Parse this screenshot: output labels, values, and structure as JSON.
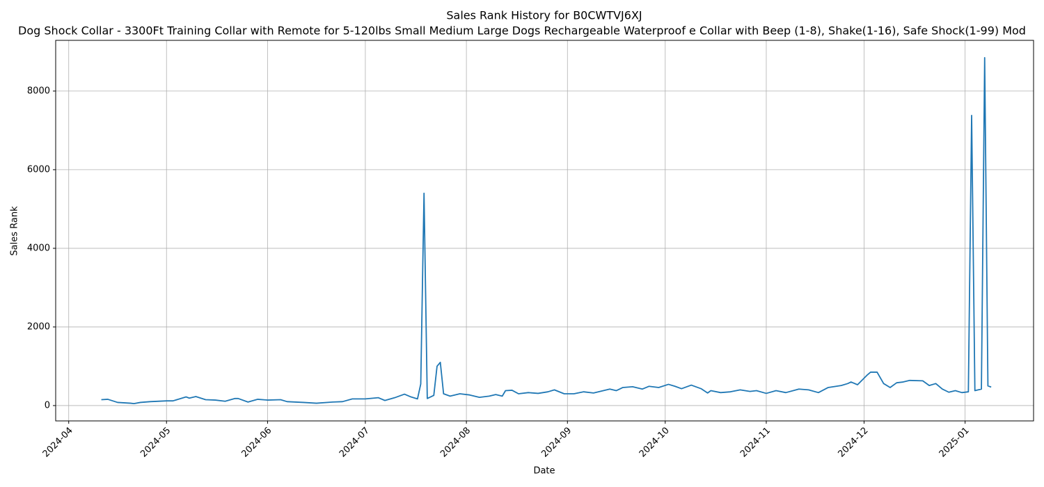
{
  "chart_data": {
    "type": "line",
    "title": "Sales Rank History for B0CWTVJ6XJ",
    "subtitle": "Dog Shock Collar - 3300Ft Training Collar with Remote for 5-120lbs Small Medium Large Dogs Rechargeable Waterproof e Collar with Beep (1-8), Shake(1-16), Safe Shock(1-99) Mod",
    "x_label": "Date",
    "y_label": "Sales Rank",
    "x": [
      "2024-04-11",
      "2024-04-13",
      "2024-04-16",
      "2024-04-20",
      "2024-04-21",
      "2024-04-23",
      "2024-04-26",
      "2024-05-01",
      "2024-05-03",
      "2024-05-07",
      "2024-05-08",
      "2024-05-10",
      "2024-05-13",
      "2024-05-16",
      "2024-05-19",
      "2024-05-22",
      "2024-05-23",
      "2024-05-26",
      "2024-05-29",
      "2024-06-01",
      "2024-06-05",
      "2024-06-07",
      "2024-06-12",
      "2024-06-16",
      "2024-06-21",
      "2024-06-24",
      "2024-06-27",
      "2024-07-01",
      "2024-07-05",
      "2024-07-07",
      "2024-07-10",
      "2024-07-13",
      "2024-07-15",
      "2024-07-17",
      "2024-07-18",
      "2024-07-19",
      "2024-07-20",
      "2024-07-22",
      "2024-07-23",
      "2024-07-24",
      "2024-07-25",
      "2024-07-27",
      "2024-07-30",
      "2024-08-02",
      "2024-08-05",
      "2024-08-08",
      "2024-08-10",
      "2024-08-12",
      "2024-08-13",
      "2024-08-15",
      "2024-08-17",
      "2024-08-20",
      "2024-08-23",
      "2024-08-26",
      "2024-08-28",
      "2024-08-31",
      "2024-09-03",
      "2024-09-06",
      "2024-09-09",
      "2024-09-12",
      "2024-09-14",
      "2024-09-16",
      "2024-09-18",
      "2024-09-21",
      "2024-09-24",
      "2024-09-26",
      "2024-09-29",
      "2024-10-02",
      "2024-10-04",
      "2024-10-06",
      "2024-10-09",
      "2024-10-12",
      "2024-10-14",
      "2024-10-15",
      "2024-10-18",
      "2024-10-21",
      "2024-10-24",
      "2024-10-27",
      "2024-10-29",
      "2024-11-01",
      "2024-11-04",
      "2024-11-07",
      "2024-11-11",
      "2024-11-14",
      "2024-11-17",
      "2024-11-20",
      "2024-11-24",
      "2024-11-26",
      "2024-11-27",
      "2024-11-29",
      "2024-12-02",
      "2024-12-03",
      "2024-12-05",
      "2024-12-07",
      "2024-12-09",
      "2024-12-11",
      "2024-12-13",
      "2024-12-15",
      "2024-12-19",
      "2024-12-21",
      "2024-12-23",
      "2024-12-25",
      "2024-12-27",
      "2024-12-29",
      "2024-12-31",
      "2025-01-02",
      "2025-01-03",
      "2025-01-04",
      "2025-01-06",
      "2025-01-07",
      "2025-01-08",
      "2025-01-09"
    ],
    "series": [
      {
        "name": "Sales Rank",
        "color": "#1f77b4",
        "values": [
          150,
          160,
          80,
          60,
          50,
          80,
          100,
          120,
          120,
          220,
          190,
          230,
          150,
          140,
          110,
          180,
          180,
          90,
          160,
          140,
          150,
          100,
          80,
          60,
          90,
          100,
          170,
          170,
          200,
          130,
          200,
          290,
          220,
          170,
          550,
          5400,
          180,
          260,
          1000,
          1100,
          300,
          240,
          300,
          270,
          210,
          240,
          280,
          240,
          380,
          390,
          300,
          330,
          310,
          350,
          400,
          300,
          300,
          350,
          320,
          380,
          420,
          380,
          460,
          480,
          420,
          490,
          460,
          540,
          490,
          430,
          520,
          430,
          320,
          380,
          330,
          350,
          400,
          360,
          380,
          310,
          380,
          330,
          420,
          400,
          330,
          460,
          510,
          560,
          600,
          530,
          780,
          850,
          850,
          560,
          460,
          580,
          600,
          640,
          630,
          510,
          560,
          420,
          340,
          380,
          330,
          350,
          7380,
          380,
          420,
          8850,
          500,
          470
        ]
      }
    ],
    "xlim": [
      "2024-03-28",
      "2025-01-22"
    ],
    "xticks": [
      {
        "value": "2024-04-01",
        "label": "2024-04"
      },
      {
        "value": "2024-05-01",
        "label": "2024-05"
      },
      {
        "value": "2024-06-01",
        "label": "2024-06"
      },
      {
        "value": "2024-07-01",
        "label": "2024-07"
      },
      {
        "value": "2024-08-01",
        "label": "2024-08"
      },
      {
        "value": "2024-09-01",
        "label": "2024-09"
      },
      {
        "value": "2024-10-01",
        "label": "2024-10"
      },
      {
        "value": "2024-11-01",
        "label": "2024-11"
      },
      {
        "value": "2024-12-01",
        "label": "2024-12"
      },
      {
        "value": "2025-01-01",
        "label": "2025-01"
      }
    ],
    "ylim": [
      -390,
      9290
    ],
    "yticks": [
      0,
      2000,
      4000,
      6000,
      8000
    ],
    "grid": true
  }
}
